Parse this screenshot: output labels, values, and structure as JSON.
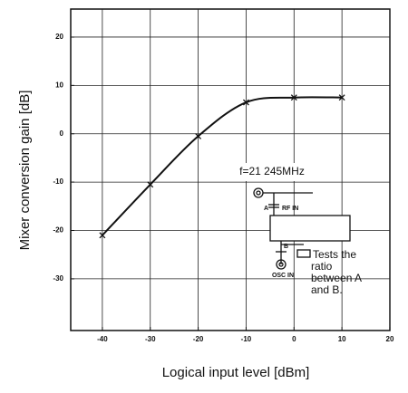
{
  "chart_data": {
    "type": "line",
    "y_label": "Mixer conversion gain [dB]",
    "x_label": "Logical input level [dBm]",
    "x": [
      -40,
      -30,
      -20,
      -10,
      0,
      10
    ],
    "series": [
      {
        "name": null,
        "color": "#111111",
        "values": [
          -21,
          -10.5,
          -0.5,
          6.5,
          7.5,
          7.5
        ]
      }
    ],
    "xlim": [
      -46.6,
      20
    ],
    "xticks": [
      -40,
      -30,
      -20,
      -10,
      0,
      10,
      20
    ],
    "ylim": [
      -40.7,
      25.8
    ],
    "yticks": [
      -30,
      -20,
      -10,
      0,
      10,
      20
    ],
    "grid": true,
    "annotation": {
      "frequency": "f=21 245MHz",
      "port_a": "A",
      "rf_in": "RF IN",
      "port_b": "B",
      "osc_in": "OSC IN",
      "note_lines": [
        "Tests the",
        "ratio",
        "between A",
        "and B."
      ]
    }
  }
}
